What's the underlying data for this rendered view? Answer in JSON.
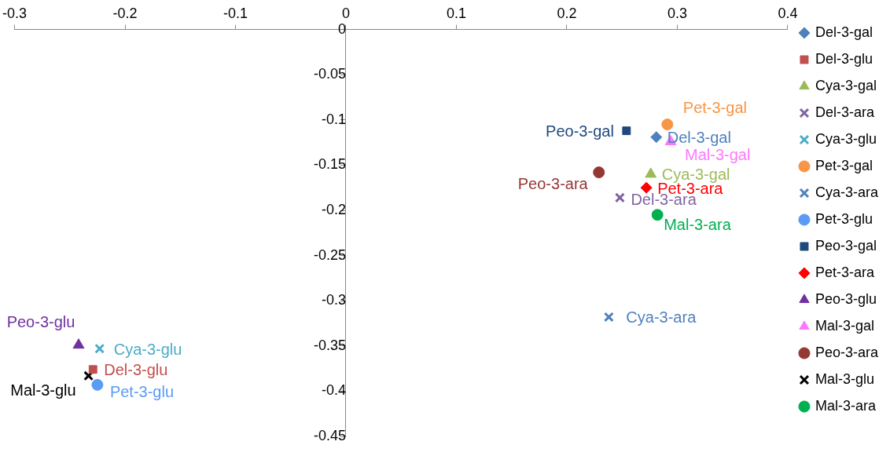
{
  "chart_data": {
    "type": "scatter",
    "xlim": [
      -0.3,
      0.4
    ],
    "xticks": [
      -0.3,
      -0.2,
      -0.1,
      0,
      0.1,
      0.2,
      0.3,
      0.4
    ],
    "ylim": [
      -0.45,
      0
    ],
    "yticks": [
      -0.45,
      -0.4,
      -0.35,
      -0.3,
      -0.25,
      -0.2,
      -0.15,
      -0.1,
      -0.05,
      0
    ],
    "grid": false,
    "legend": "right",
    "series": [
      {
        "name": "Del-3-gal",
        "color": "#4f81bd",
        "marker": "diamond",
        "x": [
          0.281
        ],
        "values": [
          -0.119
        ]
      },
      {
        "name": "Del-3-glu",
        "color": "#c0504d",
        "marker": "square",
        "x": [
          -0.229
        ],
        "values": [
          -0.376
        ]
      },
      {
        "name": "Cya-3-gal",
        "color": "#9bbb59",
        "marker": "triangle",
        "x": [
          0.276
        ],
        "values": [
          -0.16
        ]
      },
      {
        "name": "Del-3-ara",
        "color": "#8064a2",
        "marker": "cross",
        "x": [
          0.248
        ],
        "values": [
          -0.186
        ]
      },
      {
        "name": "Cya-3-glu",
        "color": "#4bacc6",
        "marker": "cross",
        "x": [
          -0.223
        ],
        "values": [
          -0.353
        ]
      },
      {
        "name": "Pet-3-gal",
        "color": "#f79646",
        "marker": "circle",
        "x": [
          0.291
        ],
        "values": [
          -0.105
        ]
      },
      {
        "name": "Cya-3-ara",
        "color": "#4f81bd",
        "marker": "cross",
        "x": [
          0.238
        ],
        "values": [
          -0.318
        ]
      },
      {
        "name": "Pet-3-glu",
        "color": "#5b9bf5",
        "marker": "circle",
        "x": [
          -0.225
        ],
        "values": [
          -0.393
        ]
      },
      {
        "name": "Peo-3-gal",
        "color": "#1f497d",
        "marker": "square",
        "x": [
          0.254
        ],
        "values": [
          -0.112
        ]
      },
      {
        "name": "Pet-3-ara",
        "color": "#ff0000",
        "marker": "diamond",
        "x": [
          0.272
        ],
        "values": [
          -0.175
        ]
      },
      {
        "name": "Peo-3-glu",
        "color": "#7030a0",
        "marker": "triangle",
        "x": [
          -0.242
        ],
        "values": [
          -0.349
        ]
      },
      {
        "name": "Mal-3-gal",
        "color": "#ff77ff",
        "marker": "triangle",
        "x": [
          0.294
        ],
        "values": [
          -0.124
        ]
      },
      {
        "name": "Peo-3-ara",
        "color": "#953735",
        "marker": "circle",
        "x": [
          0.229
        ],
        "values": [
          -0.158
        ]
      },
      {
        "name": "Mal-3-glu",
        "color": "#000000",
        "marker": "cross",
        "x": [
          -0.233
        ],
        "values": [
          -0.383
        ]
      },
      {
        "name": "Mal-3-ara",
        "color": "#00b050",
        "marker": "circle",
        "x": [
          0.282
        ],
        "values": [
          -0.205
        ]
      }
    ],
    "annotations": [
      {
        "text": "Del-3-gal",
        "x": 0.281,
        "y": -0.119
      },
      {
        "text": "Del-3-glu",
        "x": -0.229,
        "y": -0.376
      },
      {
        "text": "Cya-3-gal",
        "x": 0.276,
        "y": -0.16
      },
      {
        "text": "Del-3-ara",
        "x": 0.248,
        "y": -0.186
      },
      {
        "text": "Cya-3-glu",
        "x": -0.223,
        "y": -0.353
      },
      {
        "text": "Pet-3-gal",
        "x": 0.291,
        "y": -0.105
      },
      {
        "text": "Cya-3-ara",
        "x": 0.238,
        "y": -0.318
      },
      {
        "text": "Pet-3-glu",
        "x": -0.225,
        "y": -0.393
      },
      {
        "text": "Peo-3-gal",
        "x": 0.254,
        "y": -0.112
      },
      {
        "text": "Pet-3-ara",
        "x": 0.272,
        "y": -0.175
      },
      {
        "text": "Peo-3-glu",
        "x": -0.242,
        "y": -0.349
      },
      {
        "text": "Mal-3-gal",
        "x": 0.294,
        "y": -0.124
      },
      {
        "text": "Peo-3-ara",
        "x": 0.229,
        "y": -0.158
      },
      {
        "text": "Mal-3-glu",
        "x": -0.233,
        "y": -0.383
      },
      {
        "text": "Mal-3-ara",
        "x": 0.282,
        "y": -0.205
      }
    ]
  }
}
